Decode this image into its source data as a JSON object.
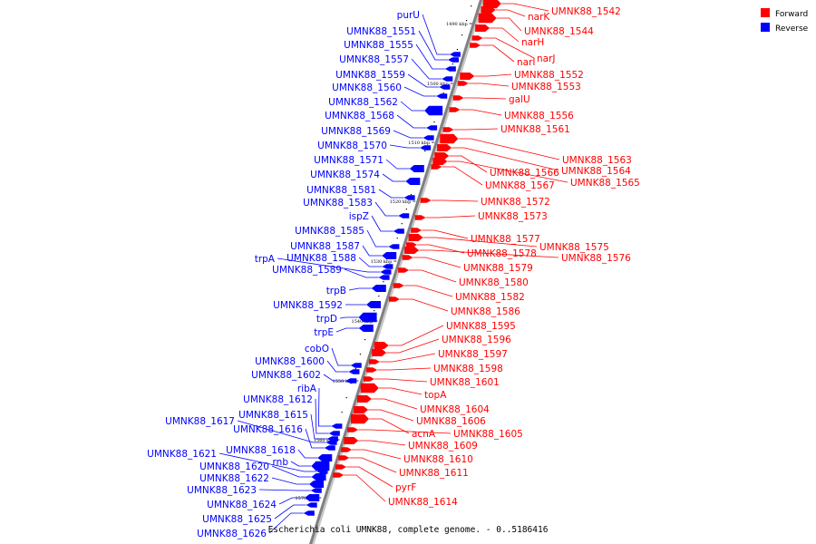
{
  "title": "Escherichia coli UMNK88, complete genome. - 0..5186416",
  "legend": {
    "placement": "top-right",
    "items": [
      {
        "label": "Forward",
        "color": "#ff0000"
      },
      {
        "label": "Reverse",
        "color": "#0000ff"
      }
    ]
  },
  "colors": {
    "forward": "#ff0000",
    "reverse": "#0000ff",
    "backbone": "#808080"
  },
  "ticks": [
    "1490 kbp",
    "1500 kbp",
    "1510 kbp",
    "1520 kbp",
    "1530 kbp",
    "1540 kbp",
    "1550 kbp",
    "1560 kbp",
    "1570 kbp"
  ],
  "forward_genes": [
    {
      "name": "UMNK88_1542",
      "size": 3
    },
    {
      "name": "narK",
      "size": 2
    },
    {
      "name": "UMNK88_1544",
      "size": 3
    },
    {
      "name": "narH",
      "size": 2
    },
    {
      "name": "narJ",
      "size": 1
    },
    {
      "name": "narI",
      "size": 1
    },
    {
      "name": "UMNK88_1552",
      "size": 2
    },
    {
      "name": "UMNK88_1553",
      "size": 1
    },
    {
      "name": "galU",
      "size": 1
    },
    {
      "name": "UMNK88_1556",
      "size": 1
    },
    {
      "name": "UMNK88_1561",
      "size": 1
    },
    {
      "name": "UMNK88_1563",
      "size": 3
    },
    {
      "name": "UMNK88_1564",
      "size": 2
    },
    {
      "name": "UMNK88_1566",
      "size": 2
    },
    {
      "name": "UMNK88_1565",
      "size": 2
    },
    {
      "name": "UMNK88_1567",
      "size": 1
    },
    {
      "name": "UMNK88_1572",
      "size": 1
    },
    {
      "name": "UMNK88_1573",
      "size": 1
    },
    {
      "name": "UMNK88_1577",
      "size": 1
    },
    {
      "name": "UMNK88_1575",
      "size": 2
    },
    {
      "name": "UMNK88_1578",
      "size": 1
    },
    {
      "name": "UMNK88_1576",
      "size": 2
    },
    {
      "name": "UMNK88_1579",
      "size": 1
    },
    {
      "name": "UMNK88_1580",
      "size": 1
    },
    {
      "name": "UMNK88_1582",
      "size": 1
    },
    {
      "name": "UMNK88_1586",
      "size": 1
    },
    {
      "name": "UMNK88_1595",
      "size": 2
    },
    {
      "name": "UMNK88_1596",
      "size": 2
    },
    {
      "name": "UMNK88_1597",
      "size": 1
    },
    {
      "name": "UMNK88_1598",
      "size": 1
    },
    {
      "name": "UMNK88_1601",
      "size": 1
    },
    {
      "name": "topA",
      "size": 3
    },
    {
      "name": "UMNK88_1604",
      "size": 2
    },
    {
      "name": "UMNK88_1606",
      "size": 2
    },
    {
      "name": "acnA",
      "size": 3
    },
    {
      "name": "UMNK88_1605",
      "size": 1
    },
    {
      "name": "UMNK88_1609",
      "size": 2
    },
    {
      "name": "UMNK88_1610",
      "size": 1
    },
    {
      "name": "UMNK88_1611",
      "size": 1
    },
    {
      "name": "pyrF",
      "size": 1
    },
    {
      "name": "UMNK88_1614",
      "size": 1
    }
  ],
  "reverse_genes": [
    {
      "name": "purU",
      "size": 1
    },
    {
      "name": "UMNK88_1551",
      "size": 1
    },
    {
      "name": "UMNK88_1555",
      "size": 1
    },
    {
      "name": "UMNK88_1557",
      "size": 1
    },
    {
      "name": "UMNK88_1559",
      "size": 1
    },
    {
      "name": "UMNK88_1560",
      "size": 1
    },
    {
      "name": "UMNK88_1562",
      "size": 3
    },
    {
      "name": "UMNK88_1568",
      "size": 1
    },
    {
      "name": "UMNK88_1569",
      "size": 1
    },
    {
      "name": "UMNK88_1570",
      "size": 1
    },
    {
      "name": "UMNK88_1571",
      "size": 2
    },
    {
      "name": "UMNK88_1574",
      "size": 2
    },
    {
      "name": "UMNK88_1581",
      "size": 1
    },
    {
      "name": "UMNK88_1583",
      "size": 1
    },
    {
      "name": "ispZ",
      "size": 1
    },
    {
      "name": "UMNK88_1585",
      "size": 1
    },
    {
      "name": "UMNK88_1587",
      "size": 2
    },
    {
      "name": "UMNK88_1588",
      "size": 1
    },
    {
      "name": "trpA",
      "size": 1
    },
    {
      "name": "UMNK88_1589",
      "size": 1
    },
    {
      "name": "trpB",
      "size": 2
    },
    {
      "name": "UMNK88_1592",
      "size": 2
    },
    {
      "name": "trpD",
      "size": 3
    },
    {
      "name": "trpE",
      "size": 2
    },
    {
      "name": "cobO",
      "size": 1
    },
    {
      "name": "UMNK88_1600",
      "size": 1
    },
    {
      "name": "UMNK88_1602",
      "size": 1
    },
    {
      "name": "ribA",
      "size": 1
    },
    {
      "name": "UMNK88_1612",
      "size": 1
    },
    {
      "name": "UMNK88_1615",
      "size": 1
    },
    {
      "name": "UMNK88_1617",
      "size": 1
    },
    {
      "name": "UMNK88_1616",
      "size": 1
    },
    {
      "name": "UMNK88_1618",
      "size": 2
    },
    {
      "name": "rnb",
      "size": 3
    },
    {
      "name": "UMNK88_1621",
      "size": 1
    },
    {
      "name": "UMNK88_1620",
      "size": 2
    },
    {
      "name": "UMNK88_1622",
      "size": 2
    },
    {
      "name": "UMNK88_1623",
      "size": 1
    },
    {
      "name": "UMNK88_1624",
      "size": 2
    },
    {
      "name": "UMNK88_1625",
      "size": 1
    },
    {
      "name": "UMNK88_1626",
      "size": 1
    }
  ]
}
